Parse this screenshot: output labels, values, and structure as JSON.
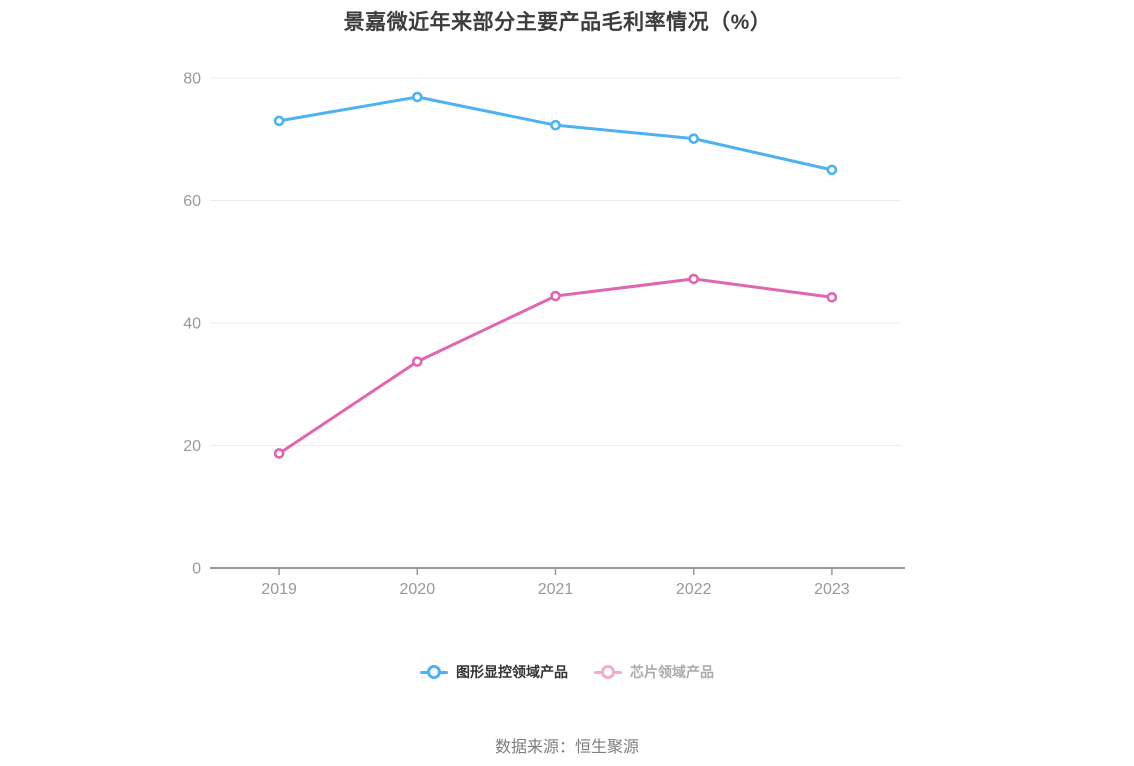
{
  "title": "景嘉微近年来部分主要产品毛利率情况（%）",
  "source": "数据来源：恒生聚源",
  "chart_data": {
    "type": "line",
    "categories": [
      "2019",
      "2020",
      "2021",
      "2022",
      "2023"
    ],
    "series": [
      {
        "name": "图形显控领域产品",
        "values": [
          73.0,
          76.9,
          72.3,
          70.1,
          65.0
        ],
        "color": "#4cb2f1",
        "legend_color": "#4cb2f1",
        "legend_label_color": "#333333"
      },
      {
        "name": "芯片领域产品",
        "values": [
          18.7,
          33.7,
          44.4,
          47.2,
          44.2
        ],
        "color": "#df67b2",
        "legend_color": "#f2abd5",
        "legend_label_color": "#ababab"
      }
    ],
    "ylabel": "",
    "xlabel": "",
    "ylim": [
      0,
      80
    ],
    "yticks": [
      0,
      20,
      40,
      60,
      80
    ],
    "grid": true,
    "legend_position": "bottom",
    "colors": {
      "axis": "#999999",
      "grid": "#e8edf3",
      "tick_label": "#999999",
      "title_text": "#3d3d3d",
      "source_text": "#7d7d7d"
    }
  }
}
